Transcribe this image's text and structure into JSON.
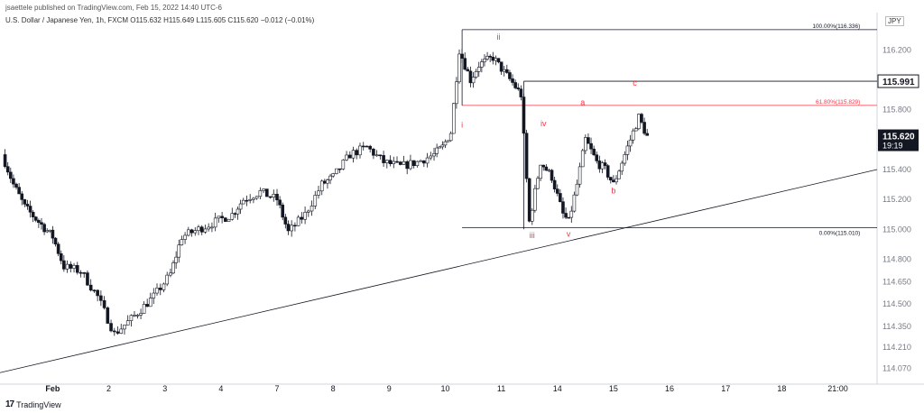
{
  "header": {
    "published": "jsaettele published on TradingView.com, Feb 15, 2022 14:40 UTC-6",
    "legend": "U.S. Dollar / Japanese Yen, 1h, FXCM  O115.632  H115.649  L115.605  C115.620  −0.012 (−0.01%)"
  },
  "currency_label": "JPY",
  "footer": {
    "logo_text": "TradingView",
    "logo_mark": "17"
  },
  "colors": {
    "up": "#131722",
    "down": "#131722",
    "red": "#f23645",
    "axis": "#787b86"
  },
  "chart_data": {
    "type": "candlestick",
    "ylim": [
      114.0,
      116.45
    ],
    "y_ticks": [
      "116.200",
      "115.800",
      "115.400",
      "115.200",
      "115.000",
      "114.800",
      "114.650",
      "114.500",
      "114.350",
      "114.210",
      "114.070"
    ],
    "x_ticks": [
      {
        "label": "Feb",
        "x": 1
      },
      {
        "label": "2",
        "x": 2
      },
      {
        "label": "3",
        "x": 3
      },
      {
        "label": "4",
        "x": 4
      },
      {
        "label": "7",
        "x": 5
      },
      {
        "label": "8",
        "x": 6
      },
      {
        "label": "9",
        "x": 7
      },
      {
        "label": "10",
        "x": 8
      },
      {
        "label": "11",
        "x": 9
      },
      {
        "label": "14",
        "x": 10
      },
      {
        "label": "15",
        "x": 11
      },
      {
        "label": "16",
        "x": 12
      },
      {
        "label": "17",
        "x": 13
      },
      {
        "label": "18",
        "x": 14
      },
      {
        "label": "21:00",
        "x": 15
      }
    ],
    "xlim": [
      0.06,
      15.7
    ],
    "price_path": [
      [
        0.1,
        115.5
      ],
      [
        0.3,
        115.3
      ],
      [
        0.5,
        115.15
      ],
      [
        0.75,
        115.05
      ],
      [
        1.0,
        114.95
      ],
      [
        1.2,
        114.75
      ],
      [
        1.5,
        114.72
      ],
      [
        1.8,
        114.55
      ],
      [
        2.1,
        114.3
      ],
      [
        2.4,
        114.4
      ],
      [
        2.8,
        114.55
      ],
      [
        3.1,
        114.7
      ],
      [
        3.3,
        114.95
      ],
      [
        3.6,
        115.0
      ],
      [
        3.9,
        115.05
      ],
      [
        4.2,
        115.1
      ],
      [
        4.4,
        115.2
      ],
      [
        4.7,
        115.25
      ],
      [
        5.0,
        115.2
      ],
      [
        5.2,
        114.98
      ],
      [
        5.5,
        115.1
      ],
      [
        5.8,
        115.3
      ],
      [
        6.0,
        115.35
      ],
      [
        6.3,
        115.5
      ],
      [
        6.6,
        115.55
      ],
      [
        6.9,
        115.45
      ],
      [
        7.2,
        115.42
      ],
      [
        7.5,
        115.45
      ],
      [
        7.8,
        115.5
      ],
      [
        7.95,
        115.55
      ],
      [
        8.1,
        115.65
      ],
      [
        8.25,
        116.2
      ],
      [
        8.45,
        116.0
      ],
      [
        8.6,
        116.1
      ],
      [
        8.85,
        116.15
      ],
      [
        9.05,
        116.05
      ],
      [
        9.2,
        115.98
      ],
      [
        9.35,
        115.9
      ],
      [
        9.5,
        115.05
      ],
      [
        9.7,
        115.45
      ],
      [
        9.9,
        115.35
      ],
      [
        10.1,
        115.1
      ],
      [
        10.2,
        115.05
      ],
      [
        10.35,
        115.3
      ],
      [
        10.5,
        115.6
      ],
      [
        10.7,
        115.45
      ],
      [
        10.85,
        115.4
      ],
      [
        11.0,
        115.3
      ],
      [
        11.15,
        115.45
      ],
      [
        11.3,
        115.6
      ],
      [
        11.45,
        115.75
      ],
      [
        11.6,
        115.62
      ]
    ],
    "horizontal_levels": [
      {
        "label": "100.00%(116.336)",
        "value": 116.336
      },
      {
        "label": "61.80%(115.829)",
        "value": 115.829
      },
      {
        "label": "0.00%(115.010)",
        "value": 115.01
      }
    ],
    "marker_line": {
      "value": 115.991
    },
    "trendline": [
      [
        0.05,
        114.04
      ],
      [
        15.7,
        115.4
      ]
    ],
    "wave_labels": [
      {
        "text": "i",
        "x": 8.3,
        "y": 115.68
      },
      {
        "text": "ii",
        "x": 8.95,
        "y": 116.27
      },
      {
        "text": "iii",
        "x": 9.55,
        "y": 114.94
      },
      {
        "text": "iv",
        "x": 9.75,
        "y": 115.69
      },
      {
        "text": "v",
        "x": 10.2,
        "y": 114.95
      },
      {
        "text": "a",
        "x": 10.45,
        "y": 115.83
      },
      {
        "text": "b",
        "x": 11.0,
        "y": 115.24
      },
      {
        "text": "c",
        "x": 11.38,
        "y": 115.96
      }
    ],
    "price_labels": [
      {
        "text": "115.991",
        "value": 115.991
      },
      {
        "text": "115.620",
        "value": 115.62
      },
      {
        "text": "19:19",
        "value": 115.575
      }
    ]
  }
}
